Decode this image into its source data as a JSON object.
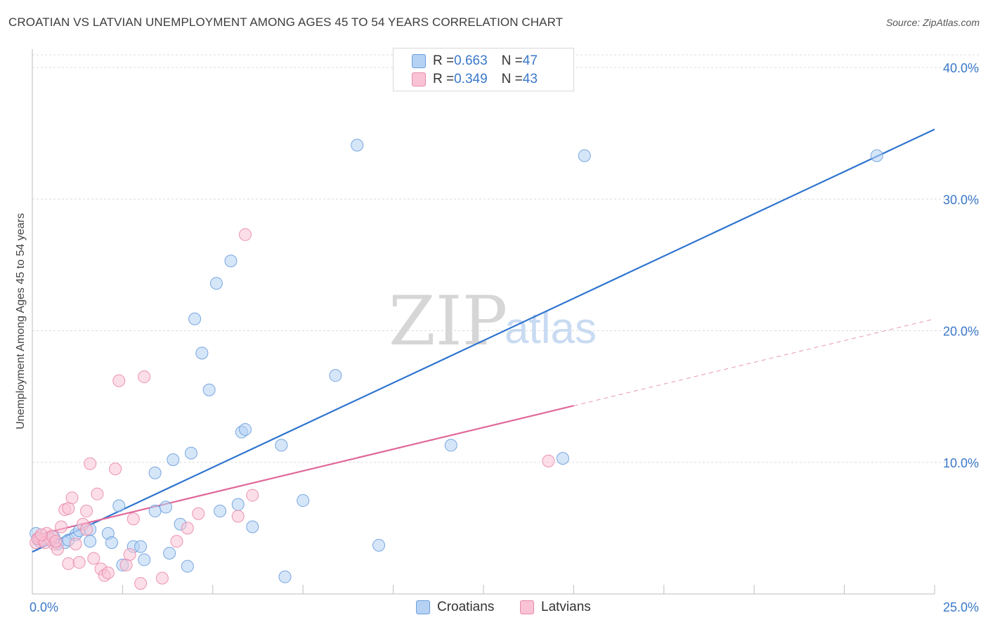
{
  "title": "CROATIAN VS LATVIAN UNEMPLOYMENT AMONG AGES 45 TO 54 YEARS CORRELATION CHART",
  "source": "Source: ZipAtlas.com",
  "watermark": {
    "zip": "ZIP",
    "atlas": "atlas"
  },
  "legend": {
    "r_label": "R = ",
    "n_label": "N = ",
    "rows": [
      {
        "r": "0.663",
        "n": "47",
        "fill": "#b5d1f4",
        "stroke": "#6a9fdc"
      },
      {
        "r": "0.349",
        "n": "43",
        "fill": "#f9c3d5",
        "stroke": "#e889ab"
      }
    ]
  },
  "bottom_legend": [
    {
      "label": "Croatians",
      "fill": "#b5d1f4",
      "stroke": "#6a9fdc"
    },
    {
      "label": "Latvians",
      "fill": "#f9c3d5",
      "stroke": "#e889ab"
    }
  ],
  "chart_data": {
    "type": "scatter",
    "title": "CROATIAN VS LATVIAN UNEMPLOYMENT AMONG AGES 45 TO 54 YEARS CORRELATION CHART",
    "xlabel": "",
    "ylabel": "Unemployment Among Ages 45 to 54 years",
    "xlim": [
      0,
      25
    ],
    "ylim": [
      0,
      40
    ],
    "x_tick_labels": [
      "0.0%",
      "25.0%"
    ],
    "y_ticks": [
      10,
      20,
      30,
      40
    ],
    "y_tick_labels": [
      "10.0%",
      "20.0%",
      "30.0%",
      "40.0%"
    ],
    "grid": true,
    "series": [
      {
        "name": "Croatians",
        "color": "#3a78c9",
        "fill": "#b5d1f4",
        "points": [
          [
            0.1,
            4.6
          ],
          [
            0.3,
            4.2
          ],
          [
            0.5,
            4.1
          ],
          [
            0.6,
            4.3
          ],
          [
            0.7,
            3.8
          ],
          [
            0.9,
            3.9
          ],
          [
            1.0,
            4.1
          ],
          [
            1.2,
            4.5
          ],
          [
            1.3,
            4.8
          ],
          [
            1.6,
            4.9
          ],
          [
            1.6,
            4.0
          ],
          [
            2.1,
            4.6
          ],
          [
            2.2,
            3.9
          ],
          [
            2.4,
            6.7
          ],
          [
            2.5,
            2.2
          ],
          [
            2.8,
            3.6
          ],
          [
            3.0,
            3.6
          ],
          [
            3.1,
            2.6
          ],
          [
            3.4,
            9.2
          ],
          [
            3.4,
            6.3
          ],
          [
            3.7,
            6.6
          ],
          [
            3.8,
            3.1
          ],
          [
            3.9,
            10.2
          ],
          [
            4.1,
            5.3
          ],
          [
            4.3,
            2.1
          ],
          [
            4.4,
            10.7
          ],
          [
            4.5,
            20.9
          ],
          [
            4.7,
            18.3
          ],
          [
            4.9,
            15.5
          ],
          [
            5.1,
            23.6
          ],
          [
            5.2,
            6.3
          ],
          [
            5.5,
            25.3
          ],
          [
            5.7,
            6.8
          ],
          [
            5.8,
            12.3
          ],
          [
            5.9,
            12.5
          ],
          [
            6.1,
            5.1
          ],
          [
            6.9,
            11.3
          ],
          [
            7.0,
            1.3
          ],
          [
            7.5,
            7.1
          ],
          [
            8.4,
            16.6
          ],
          [
            9.0,
            34.1
          ],
          [
            9.6,
            3.7
          ],
          [
            11.6,
            11.3
          ],
          [
            14.7,
            10.3
          ],
          [
            15.3,
            33.3
          ],
          [
            23.4,
            33.3
          ],
          [
            0.2,
            4.0
          ]
        ]
      },
      {
        "name": "Latvians",
        "color": "#e8709a",
        "fill": "#f9c3d5",
        "points": [
          [
            0.1,
            3.9
          ],
          [
            0.2,
            4.3
          ],
          [
            0.3,
            4.1
          ],
          [
            0.4,
            4.6
          ],
          [
            0.5,
            4.2
          ],
          [
            0.6,
            3.8
          ],
          [
            0.7,
            3.4
          ],
          [
            0.8,
            5.1
          ],
          [
            0.9,
            6.4
          ],
          [
            1.0,
            6.5
          ],
          [
            1.0,
            2.3
          ],
          [
            1.1,
            7.3
          ],
          [
            1.2,
            3.8
          ],
          [
            1.3,
            2.4
          ],
          [
            1.4,
            5.3
          ],
          [
            1.5,
            4.9
          ],
          [
            1.5,
            6.3
          ],
          [
            1.6,
            9.9
          ],
          [
            1.7,
            2.7
          ],
          [
            1.8,
            7.6
          ],
          [
            1.9,
            1.9
          ],
          [
            2.0,
            1.4
          ],
          [
            2.1,
            1.6
          ],
          [
            2.3,
            9.5
          ],
          [
            2.4,
            16.2
          ],
          [
            2.6,
            2.2
          ],
          [
            2.7,
            3.0
          ],
          [
            2.8,
            5.7
          ],
          [
            3.0,
            0.8
          ],
          [
            3.1,
            16.5
          ],
          [
            3.6,
            1.2
          ],
          [
            4.0,
            4.0
          ],
          [
            4.3,
            5.0
          ],
          [
            4.6,
            6.1
          ],
          [
            5.7,
            5.9
          ],
          [
            5.9,
            27.3
          ],
          [
            6.1,
            7.5
          ],
          [
            14.3,
            10.1
          ],
          [
            0.15,
            4.2
          ],
          [
            0.35,
            3.9
          ],
          [
            0.55,
            4.4
          ],
          [
            0.25,
            4.5
          ],
          [
            0.65,
            4.0
          ]
        ]
      }
    ],
    "trend_lines": [
      {
        "series": "Croatians",
        "x": [
          0,
          25
        ],
        "y": [
          3.2,
          35.3
        ],
        "style": "solid"
      },
      {
        "series": "Latvians",
        "x": [
          0,
          15
        ],
        "y": [
          4.4,
          14.3
        ],
        "style": "solid"
      },
      {
        "series": "Latvians",
        "x": [
          15,
          25
        ],
        "y": [
          14.3,
          20.9
        ],
        "style": "dashed"
      }
    ],
    "legend_stats": [
      {
        "series": "Croatians",
        "R": 0.663,
        "N": 47
      },
      {
        "series": "Latvians",
        "R": 0.349,
        "N": 43
      }
    ]
  }
}
